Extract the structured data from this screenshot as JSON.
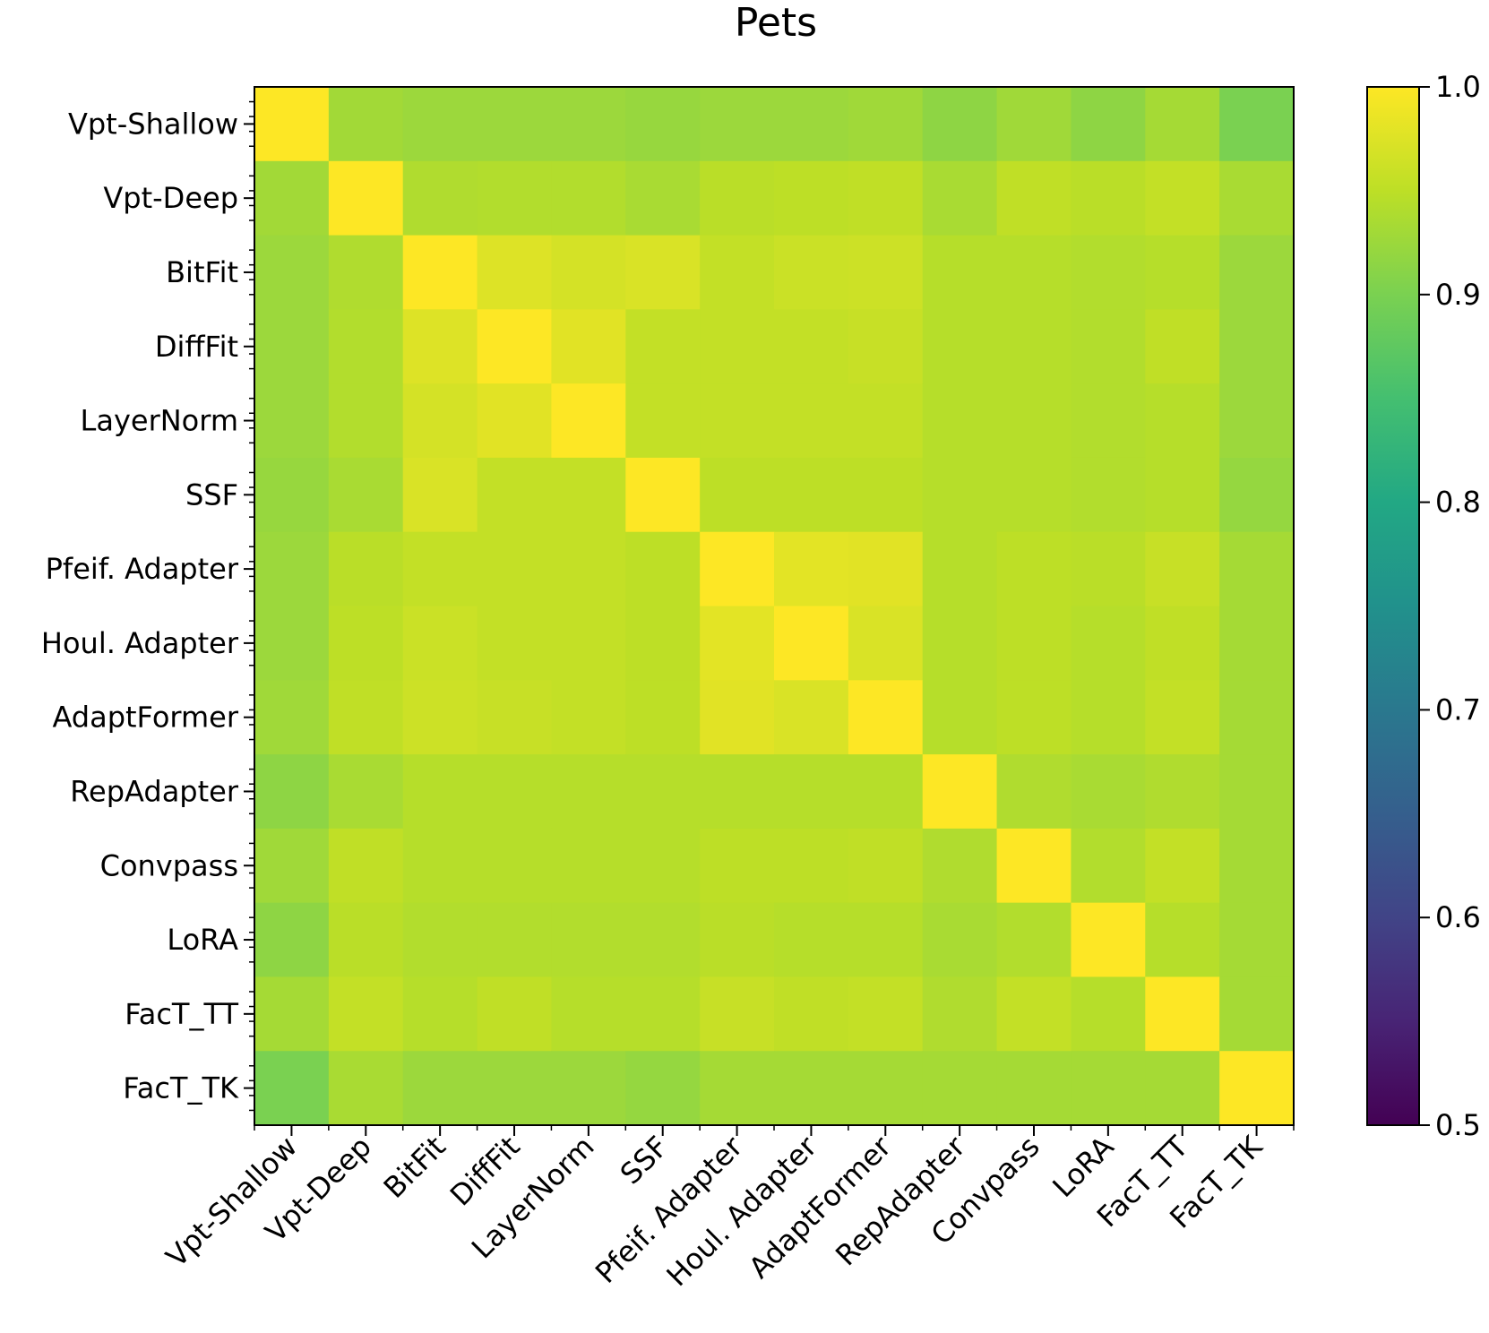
{
  "chart_data": {
    "type": "heatmap",
    "title": "Pets",
    "row_labels": [
      "Vpt-Shallow",
      "Vpt-Deep",
      "BitFit",
      "DiffFit",
      "LayerNorm",
      "SSF",
      "Pfeif. Adapter",
      "Houl. Adapter",
      "AdaptFormer",
      "RepAdapter",
      "Convpass",
      "LoRA",
      "FacT_TT",
      "FacT_TK"
    ],
    "col_labels": [
      "Vpt-Shallow",
      "Vpt-Deep",
      "BitFit",
      "DiffFit",
      "LayerNorm",
      "SSF",
      "Pfeif. Adapter",
      "Houl. Adapter",
      "AdaptFormer",
      "RepAdapter",
      "Convpass",
      "LoRA",
      "FacT_TT",
      "FacT_TK"
    ],
    "values": [
      [
        1.0,
        0.93,
        0.925,
        0.925,
        0.925,
        0.922,
        0.925,
        0.925,
        0.928,
        0.915,
        0.928,
        0.915,
        0.932,
        0.9
      ],
      [
        0.93,
        1.0,
        0.94,
        0.942,
        0.942,
        0.935,
        0.948,
        0.95,
        0.952,
        0.935,
        0.952,
        0.948,
        0.955,
        0.935
      ],
      [
        0.925,
        0.94,
        1.0,
        0.975,
        0.968,
        0.972,
        0.955,
        0.96,
        0.962,
        0.945,
        0.945,
        0.942,
        0.945,
        0.925
      ],
      [
        0.925,
        0.942,
        0.975,
        1.0,
        0.978,
        0.955,
        0.955,
        0.955,
        0.958,
        0.945,
        0.945,
        0.942,
        0.952,
        0.925
      ],
      [
        0.925,
        0.942,
        0.968,
        0.978,
        1.0,
        0.955,
        0.955,
        0.955,
        0.955,
        0.945,
        0.945,
        0.942,
        0.945,
        0.925
      ],
      [
        0.922,
        0.935,
        0.972,
        0.955,
        0.955,
        1.0,
        0.95,
        0.95,
        0.95,
        0.945,
        0.945,
        0.942,
        0.945,
        0.92
      ],
      [
        0.925,
        0.948,
        0.955,
        0.955,
        0.955,
        0.95,
        1.0,
        0.98,
        0.978,
        0.945,
        0.95,
        0.948,
        0.958,
        0.932
      ],
      [
        0.925,
        0.95,
        0.96,
        0.955,
        0.955,
        0.95,
        0.98,
        1.0,
        0.972,
        0.945,
        0.95,
        0.945,
        0.952,
        0.932
      ],
      [
        0.928,
        0.952,
        0.962,
        0.958,
        0.955,
        0.95,
        0.978,
        0.972,
        1.0,
        0.945,
        0.95,
        0.945,
        0.955,
        0.932
      ],
      [
        0.915,
        0.935,
        0.945,
        0.945,
        0.945,
        0.945,
        0.945,
        0.945,
        0.945,
        1.0,
        0.94,
        0.935,
        0.94,
        0.932
      ],
      [
        0.928,
        0.952,
        0.945,
        0.945,
        0.945,
        0.945,
        0.95,
        0.95,
        0.952,
        0.94,
        1.0,
        0.942,
        0.955,
        0.932
      ],
      [
        0.915,
        0.948,
        0.942,
        0.942,
        0.942,
        0.942,
        0.948,
        0.945,
        0.945,
        0.935,
        0.942,
        1.0,
        0.945,
        0.932
      ],
      [
        0.932,
        0.955,
        0.945,
        0.952,
        0.945,
        0.945,
        0.958,
        0.952,
        0.955,
        0.94,
        0.955,
        0.945,
        1.0,
        0.932
      ],
      [
        0.9,
        0.935,
        0.925,
        0.925,
        0.925,
        0.92,
        0.932,
        0.932,
        0.932,
        0.932,
        0.932,
        0.932,
        0.932,
        1.0
      ]
    ],
    "colormap": "viridis",
    "vmin": 0.5,
    "vmax": 1.0,
    "colorbar_ticks": [
      "0.5",
      "0.6",
      "0.7",
      "0.8",
      "0.9",
      "1.0"
    ],
    "grid": false
  }
}
